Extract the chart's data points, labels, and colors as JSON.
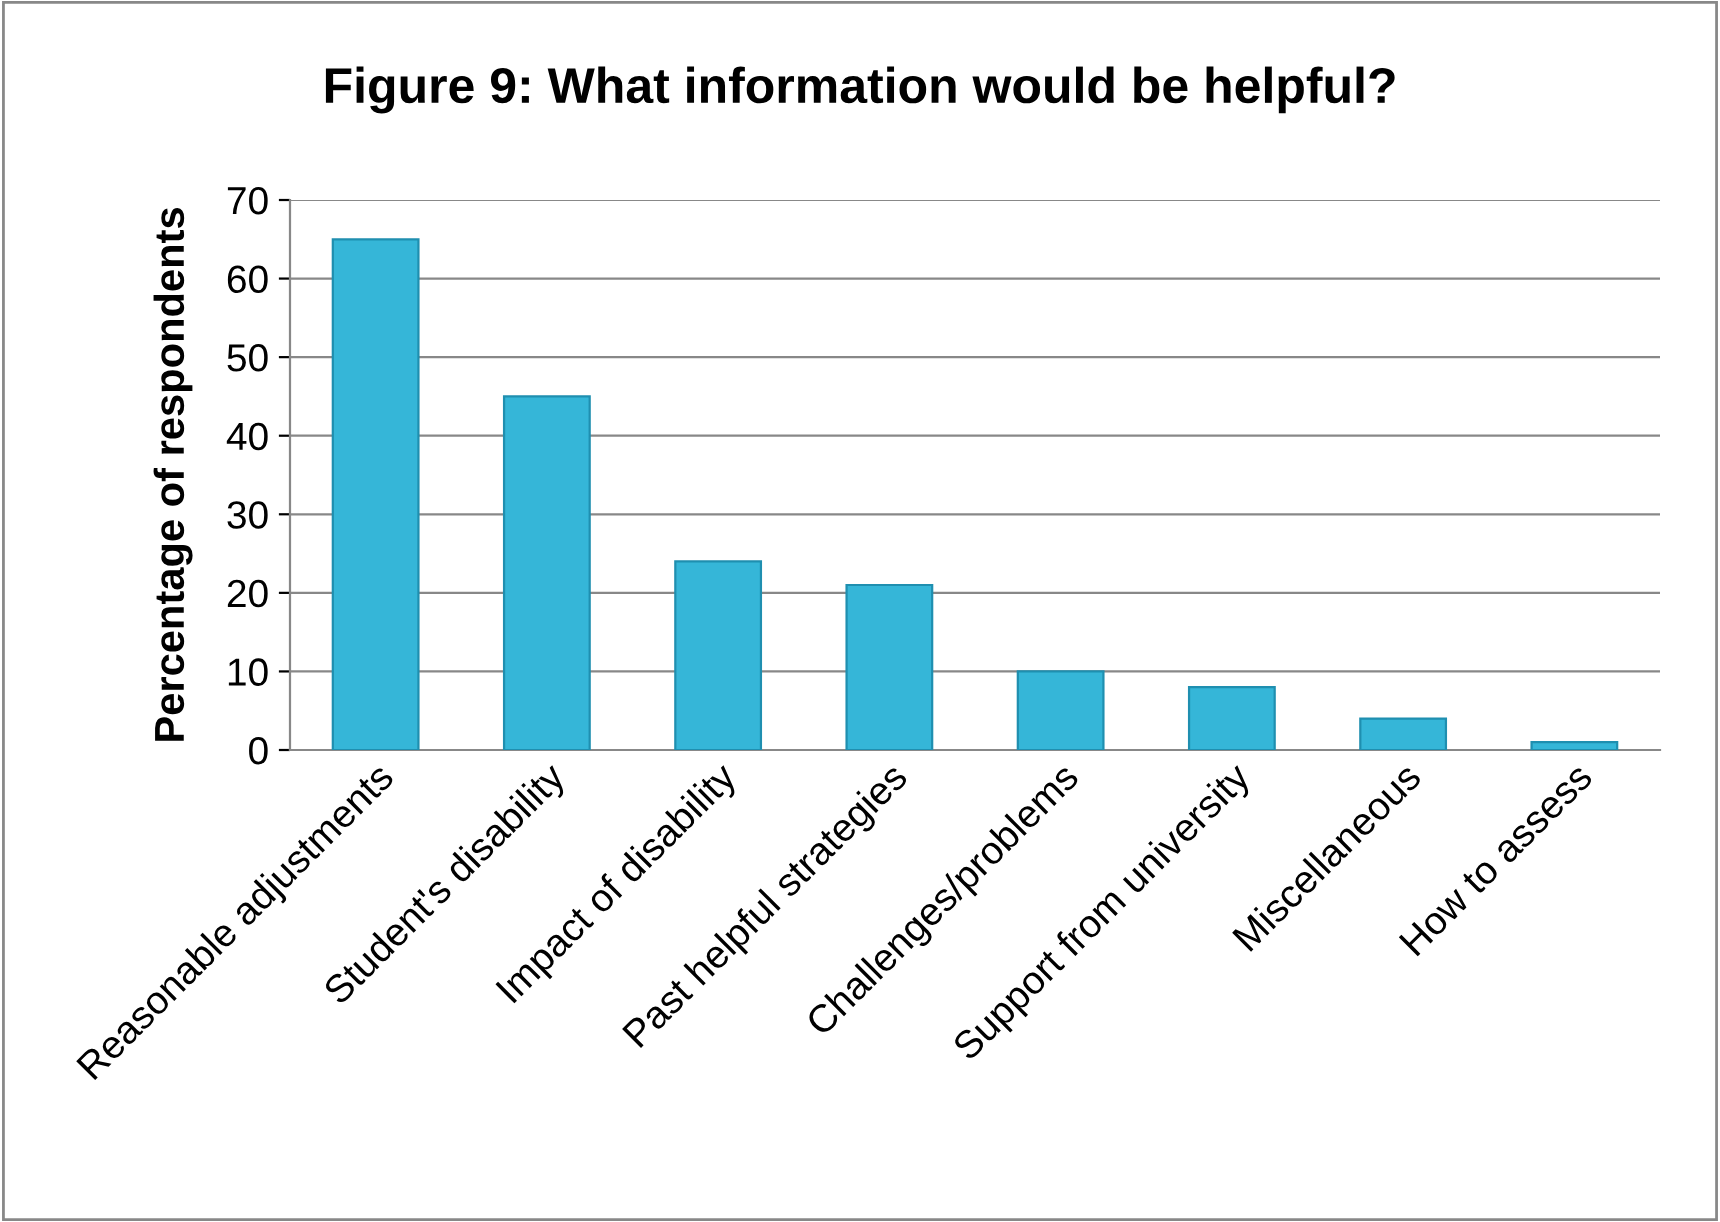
{
  "chart_data": {
    "type": "bar",
    "title": "Figure 9: What information would be helpful?",
    "ylabel": "Percentage of respondents",
    "categories": [
      "Reasonable adjustments",
      "Student's disability",
      "Impact of disability",
      "Past helpful strategies",
      "Challenges/problems",
      "Support from university",
      "Miscellaneous",
      "How to assess"
    ],
    "values": [
      65,
      45,
      24,
      21,
      10,
      8,
      4,
      1
    ],
    "color": "#35b6d8",
    "ylim": [
      0,
      70
    ],
    "yticks": [
      0,
      10,
      20,
      30,
      40,
      50,
      60,
      70
    ],
    "grid": "y"
  }
}
